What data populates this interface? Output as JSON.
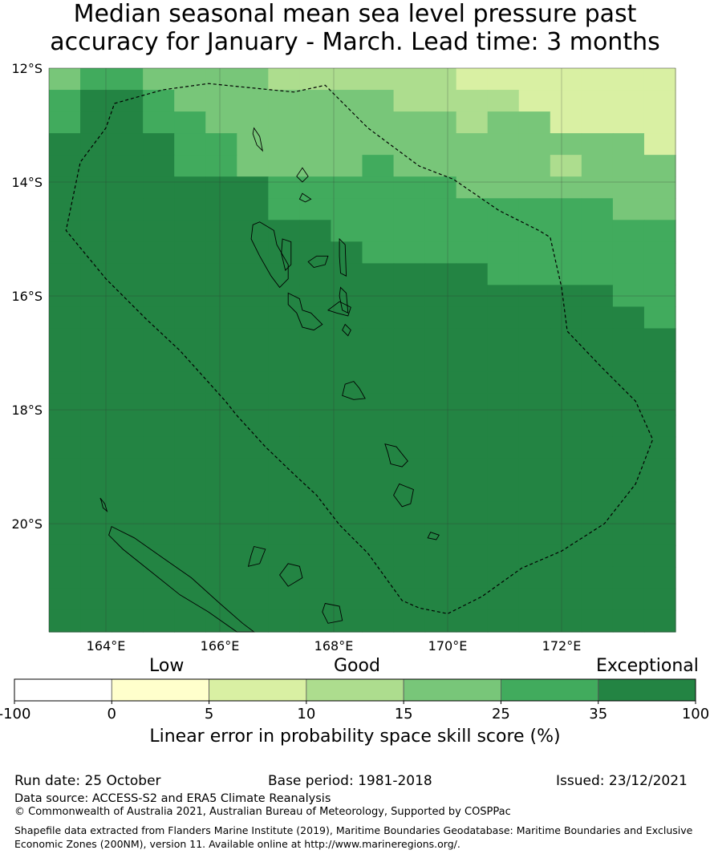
{
  "title_line1": "Median seasonal mean sea level pressure past",
  "title_line2": "accuracy for January - March. Lead time: 3 months",
  "map": {
    "lon_range": [
      163,
      174
    ],
    "lat_range": [
      -21.9,
      -12
    ],
    "lat_ticks": [
      {
        "value": -12,
        "label": "12°S"
      },
      {
        "value": -14,
        "label": "14°S"
      },
      {
        "value": -16,
        "label": "16°S"
      },
      {
        "value": -18,
        "label": "18°S"
      },
      {
        "value": -20,
        "label": "20°S"
      }
    ],
    "lon_ticks": [
      {
        "value": 164,
        "label": "164°E"
      },
      {
        "value": 166,
        "label": "166°E"
      },
      {
        "value": 168,
        "label": "168°E"
      },
      {
        "value": 170,
        "label": "170°E"
      },
      {
        "value": 172,
        "label": "172°E"
      }
    ],
    "grid": true,
    "colors": [
      "#ffffff",
      "#ffffcc",
      "#d9f0a3",
      "#addd8e",
      "#78c679",
      "#41ab5d",
      "#238443"
    ],
    "skill_grid": [
      [
        4,
        5,
        5,
        4,
        4,
        4,
        4,
        3,
        3,
        3,
        3,
        3,
        3,
        2,
        2,
        2,
        2,
        2,
        2,
        2
      ],
      [
        5,
        6,
        6,
        5,
        4,
        4,
        4,
        4,
        4,
        4,
        4,
        3,
        3,
        3,
        3,
        2,
        2,
        2,
        2,
        2
      ],
      [
        5,
        6,
        6,
        5,
        5,
        4,
        4,
        4,
        4,
        4,
        4,
        4,
        4,
        3,
        4,
        4,
        2,
        2,
        2,
        2
      ],
      [
        6,
        6,
        6,
        6,
        5,
        5,
        4,
        4,
        4,
        4,
        4,
        4,
        4,
        4,
        4,
        4,
        4,
        4,
        4,
        2
      ],
      [
        6,
        6,
        6,
        6,
        5,
        5,
        4,
        4,
        4,
        4,
        5,
        4,
        4,
        4,
        4,
        4,
        3,
        4,
        4,
        4
      ],
      [
        6,
        6,
        6,
        6,
        6,
        6,
        6,
        5,
        5,
        5,
        5,
        5,
        5,
        4,
        4,
        4,
        4,
        4,
        4,
        4
      ],
      [
        6,
        6,
        6,
        6,
        6,
        6,
        6,
        5,
        5,
        5,
        5,
        5,
        5,
        5,
        5,
        5,
        5,
        5,
        4,
        4
      ],
      [
        6,
        6,
        6,
        6,
        6,
        6,
        6,
        6,
        6,
        5,
        5,
        5,
        5,
        5,
        5,
        5,
        5,
        5,
        5,
        5
      ],
      [
        6,
        6,
        6,
        6,
        6,
        6,
        6,
        6,
        6,
        6,
        5,
        5,
        5,
        5,
        5,
        5,
        5,
        5,
        5,
        5
      ],
      [
        6,
        6,
        6,
        6,
        6,
        6,
        6,
        6,
        6,
        6,
        6,
        6,
        6,
        6,
        5,
        5,
        5,
        5,
        5,
        5
      ],
      [
        6,
        6,
        6,
        6,
        6,
        6,
        6,
        6,
        6,
        6,
        6,
        6,
        6,
        6,
        6,
        6,
        6,
        6,
        5,
        5
      ],
      [
        6,
        6,
        6,
        6,
        6,
        6,
        6,
        6,
        6,
        6,
        6,
        6,
        6,
        6,
        6,
        6,
        6,
        6,
        6,
        5
      ],
      [
        6,
        6,
        6,
        6,
        6,
        6,
        6,
        6,
        6,
        6,
        6,
        6,
        6,
        6,
        6,
        6,
        6,
        6,
        6,
        6
      ],
      [
        6,
        6,
        6,
        6,
        6,
        6,
        6,
        6,
        6,
        6,
        6,
        6,
        6,
        6,
        6,
        6,
        6,
        6,
        6,
        6
      ],
      [
        6,
        6,
        6,
        6,
        6,
        6,
        6,
        6,
        6,
        6,
        6,
        6,
        6,
        6,
        6,
        6,
        6,
        6,
        6,
        6
      ],
      [
        6,
        6,
        6,
        6,
        6,
        6,
        6,
        6,
        6,
        6,
        6,
        6,
        6,
        6,
        6,
        6,
        6,
        6,
        6,
        6
      ],
      [
        6,
        6,
        6,
        6,
        6,
        6,
        6,
        6,
        6,
        6,
        6,
        6,
        6,
        6,
        6,
        6,
        6,
        6,
        6,
        6
      ],
      [
        6,
        6,
        6,
        6,
        6,
        6,
        6,
        6,
        6,
        6,
        6,
        6,
        6,
        6,
        6,
        6,
        6,
        6,
        6,
        6
      ],
      [
        6,
        6,
        6,
        6,
        6,
        6,
        6,
        6,
        6,
        6,
        6,
        6,
        6,
        6,
        6,
        6,
        6,
        6,
        6,
        6
      ],
      [
        6,
        6,
        6,
        6,
        6,
        6,
        6,
        6,
        6,
        6,
        6,
        6,
        6,
        6,
        6,
        6,
        6,
        6,
        6,
        6
      ],
      [
        6,
        6,
        6,
        6,
        6,
        6,
        6,
        6,
        6,
        6,
        6,
        6,
        6,
        6,
        6,
        6,
        6,
        6,
        6,
        6
      ],
      [
        6,
        6,
        6,
        6,
        6,
        6,
        6,
        6,
        6,
        6,
        6,
        6,
        6,
        6,
        6,
        6,
        6,
        6,
        6,
        6
      ],
      [
        6,
        6,
        6,
        6,
        6,
        6,
        6,
        6,
        6,
        6,
        6,
        6,
        6,
        6,
        6,
        6,
        6,
        6,
        6,
        6
      ],
      [
        6,
        6,
        6,
        6,
        6,
        6,
        6,
        6,
        6,
        6,
        6,
        6,
        6,
        6,
        6,
        6,
        6,
        6,
        6,
        6
      ],
      [
        6,
        6,
        6,
        6,
        6,
        6,
        6,
        6,
        6,
        6,
        6,
        6,
        6,
        6,
        6,
        6,
        6,
        6,
        6,
        6
      ],
      [
        6,
        6,
        6,
        6,
        6,
        6,
        6,
        6,
        6,
        6,
        6,
        6,
        6,
        6,
        6,
        6,
        6,
        6,
        6,
        6
      ]
    ],
    "eez_boundary": [
      [
        164.15,
        -12.62
      ],
      [
        165.0,
        -12.38
      ],
      [
        165.8,
        -12.27
      ],
      [
        166.6,
        -12.35
      ],
      [
        167.3,
        -12.42
      ],
      [
        167.85,
        -12.3
      ],
      [
        168.6,
        -13.05
      ],
      [
        169.5,
        -13.72
      ],
      [
        170.1,
        -13.95
      ],
      [
        170.9,
        -14.5
      ],
      [
        171.6,
        -14.85
      ],
      [
        171.8,
        -14.97
      ],
      [
        172.0,
        -15.85
      ],
      [
        172.1,
        -16.62
      ],
      [
        172.7,
        -17.25
      ],
      [
        173.3,
        -17.85
      ],
      [
        173.6,
        -18.52
      ],
      [
        173.3,
        -19.3
      ],
      [
        172.75,
        -20.0
      ],
      [
        172.0,
        -20.48
      ],
      [
        171.3,
        -20.78
      ],
      [
        170.6,
        -21.28
      ],
      [
        170.0,
        -21.58
      ],
      [
        169.5,
        -21.48
      ],
      [
        169.2,
        -21.35
      ],
      [
        168.6,
        -20.52
      ],
      [
        168.1,
        -20.02
      ],
      [
        167.7,
        -19.5
      ],
      [
        167.3,
        -19.13
      ],
      [
        166.8,
        -18.65
      ],
      [
        166.3,
        -18.1
      ],
      [
        166.1,
        -17.85
      ],
      [
        165.3,
        -16.96
      ],
      [
        164.7,
        -16.4
      ],
      [
        164.0,
        -15.7
      ],
      [
        163.3,
        -14.85
      ],
      [
        163.55,
        -13.65
      ],
      [
        164.0,
        -13.05
      ],
      [
        164.15,
        -12.62
      ]
    ],
    "islands": [
      [
        [
          166.7,
          -14.7
        ],
        [
          166.95,
          -14.85
        ],
        [
          167.0,
          -15.1
        ],
        [
          167.2,
          -15.45
        ],
        [
          167.2,
          -15.7
        ],
        [
          167.05,
          -15.85
        ],
        [
          166.9,
          -15.65
        ],
        [
          166.7,
          -15.3
        ],
        [
          166.55,
          -15.0
        ],
        [
          166.58,
          -14.75
        ]
      ],
      [
        [
          167.1,
          -15.0
        ],
        [
          167.25,
          -15.05
        ],
        [
          167.25,
          -15.45
        ],
        [
          167.15,
          -15.55
        ],
        [
          167.08,
          -15.25
        ]
      ],
      [
        [
          167.7,
          -15.3
        ],
        [
          167.9,
          -15.3
        ],
        [
          167.85,
          -15.45
        ],
        [
          167.65,
          -15.5
        ],
        [
          167.55,
          -15.4
        ]
      ],
      [
        [
          168.1,
          -15.0
        ],
        [
          168.2,
          -15.1
        ],
        [
          168.22,
          -15.65
        ],
        [
          168.12,
          -15.6
        ],
        [
          168.1,
          -15.3
        ]
      ],
      [
        [
          168.12,
          -15.85
        ],
        [
          168.22,
          -15.95
        ],
        [
          168.25,
          -16.3
        ],
        [
          168.15,
          -16.25
        ],
        [
          168.1,
          -16.0
        ]
      ],
      [
        [
          167.2,
          -15.95
        ],
        [
          167.4,
          -16.05
        ],
        [
          167.45,
          -16.25
        ],
        [
          167.6,
          -16.3
        ],
        [
          167.8,
          -16.5
        ],
        [
          167.65,
          -16.6
        ],
        [
          167.45,
          -16.55
        ],
        [
          167.35,
          -16.3
        ],
        [
          167.2,
          -16.15
        ]
      ],
      [
        [
          168.1,
          -16.1
        ],
        [
          168.3,
          -16.2
        ],
        [
          168.25,
          -16.35
        ],
        [
          168.05,
          -16.3
        ],
        [
          167.9,
          -16.25
        ]
      ],
      [
        [
          168.2,
          -16.5
        ],
        [
          168.3,
          -16.6
        ],
        [
          168.25,
          -16.7
        ],
        [
          168.15,
          -16.6
        ]
      ],
      [
        [
          168.35,
          -17.5
        ],
        [
          168.45,
          -17.62
        ],
        [
          168.55,
          -17.8
        ],
        [
          168.35,
          -17.82
        ],
        [
          168.15,
          -17.75
        ],
        [
          168.2,
          -17.55
        ]
      ],
      [
        [
          168.9,
          -18.6
        ],
        [
          169.1,
          -18.65
        ],
        [
          169.3,
          -18.9
        ],
        [
          169.2,
          -19.0
        ],
        [
          169.0,
          -18.95
        ],
        [
          168.95,
          -18.75
        ]
      ],
      [
        [
          169.15,
          -19.3
        ],
        [
          169.4,
          -19.4
        ],
        [
          169.35,
          -19.65
        ],
        [
          169.2,
          -19.7
        ],
        [
          169.05,
          -19.5
        ]
      ],
      [
        [
          169.7,
          -20.15
        ],
        [
          169.85,
          -20.2
        ],
        [
          169.8,
          -20.28
        ],
        [
          169.65,
          -20.25
        ]
      ],
      [
        [
          166.6,
          -13.05
        ],
        [
          166.7,
          -13.2
        ],
        [
          166.75,
          -13.45
        ],
        [
          166.65,
          -13.35
        ],
        [
          166.58,
          -13.15
        ]
      ],
      [
        [
          167.45,
          -13.75
        ],
        [
          167.55,
          -13.9
        ],
        [
          167.45,
          -14.0
        ],
        [
          167.35,
          -13.9
        ]
      ],
      [
        [
          167.45,
          -14.2
        ],
        [
          167.6,
          -14.3
        ],
        [
          167.5,
          -14.35
        ],
        [
          167.4,
          -14.3
        ]
      ],
      [
        [
          164.1,
          -20.05
        ],
        [
          164.5,
          -20.25
        ],
        [
          165.0,
          -20.6
        ],
        [
          165.5,
          -20.95
        ],
        [
          166.0,
          -21.4
        ],
        [
          166.4,
          -21.75
        ],
        [
          166.6,
          -21.9
        ],
        [
          166.3,
          -21.9
        ],
        [
          165.8,
          -21.55
        ],
        [
          165.3,
          -21.25
        ],
        [
          164.8,
          -20.85
        ],
        [
          164.3,
          -20.45
        ],
        [
          164.05,
          -20.2
        ]
      ],
      [
        [
          166.6,
          -20.4
        ],
        [
          166.8,
          -20.45
        ],
        [
          166.7,
          -20.7
        ],
        [
          166.5,
          -20.75
        ],
        [
          166.55,
          -20.55
        ]
      ],
      [
        [
          167.2,
          -20.7
        ],
        [
          167.4,
          -20.75
        ],
        [
          167.45,
          -20.95
        ],
        [
          167.2,
          -21.1
        ],
        [
          167.05,
          -20.9
        ]
      ],
      [
        [
          167.85,
          -21.4
        ],
        [
          168.1,
          -21.45
        ],
        [
          168.15,
          -21.7
        ],
        [
          167.9,
          -21.75
        ],
        [
          167.8,
          -21.55
        ]
      ],
      [
        [
          163.9,
          -19.55
        ],
        [
          163.98,
          -19.65
        ],
        [
          164.02,
          -19.78
        ],
        [
          163.95,
          -19.72
        ],
        [
          163.92,
          -19.6
        ]
      ]
    ]
  },
  "colorbar": {
    "category_labels": {
      "low": "Low",
      "good": "Good",
      "exceptional": "Exceptional"
    },
    "ticks": [
      "-100",
      "0",
      "5",
      "10",
      "15",
      "25",
      "35",
      "100"
    ],
    "colors": [
      "#ffffff",
      "#ffffcc",
      "#d9f0a3",
      "#addd8e",
      "#78c679",
      "#41ab5d",
      "#238443"
    ],
    "title": "Linear error in probability space skill score (%)"
  },
  "info": {
    "run_date": "Run date: 25 October",
    "base_period": "Base period: 1981-2018",
    "issued": "Issued: 23/12/2021",
    "data_source": "Data source: ACCESS-S2 and ERA5 Climate Reanalysis",
    "copyright": "© Commonwealth of Australia 2021, Australian Bureau of Meteorology, Supported by COSPPac",
    "shapefile_line1": "Shapefile data extracted from Flanders Marine Institute (2019), Maritime Boundaries Geodatabase: Maritime Boundaries and Exclusive",
    "shapefile_line2": "Economic Zones (200NM), version 11. Available online at http://www.marineregions.org/."
  }
}
